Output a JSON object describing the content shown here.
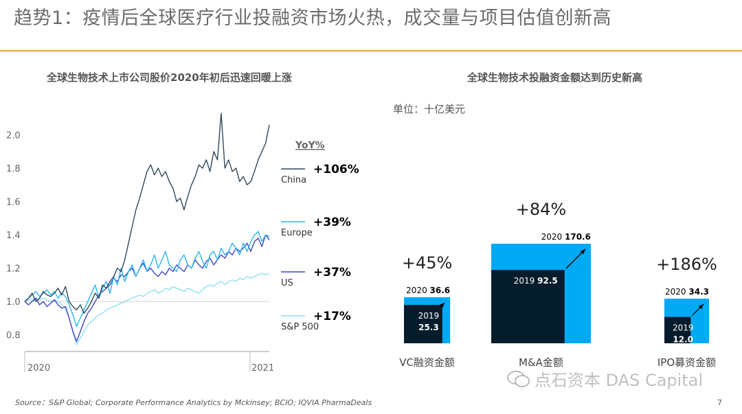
{
  "page": {
    "title": "趋势1：疫情后全球医疗行业投融资市场火热，成交量与项目估值创新高",
    "source": "Source：S&P Global;  Corporate Performance Analytics by Mckinsey; BCIO;  IQVIA PharmaDeals",
    "page_number": "7",
    "watermark": "点石资本 DAS Capital"
  },
  "colors": {
    "china": "#2f4858",
    "europe": "#29b6f0",
    "us": "#3d46c8",
    "sp500": "#8ee0f5",
    "box_2019": "#051c2c",
    "box_2020": "#00a9f4",
    "accent_rule": "#f0a040"
  },
  "chart_data": [
    {
      "type": "line",
      "title": "全球生物技术上市公司股价2020年初后迅速回暖上涨",
      "x_ticks": [
        "2020",
        "2021"
      ],
      "y_ticks": [
        "0.8",
        "1.0",
        "1.2",
        "1.4",
        "1.6",
        "1.8",
        "2.0"
      ],
      "ylim": [
        0.7,
        2.15
      ],
      "grid": "baseline at 1.0",
      "legend_title": "YoY%",
      "legend_position": "right",
      "series": [
        {
          "name": "China",
          "yoy": "+106%",
          "color_key": "china",
          "values": [
            1.0,
            1.02,
            1.05,
            1.0,
            1.02,
            1.06,
            1.04,
            1.03,
            1.05,
            1.08,
            1.04,
            1.09,
            1.0,
            0.97,
            0.95,
            0.98,
            0.93,
            0.96,
            1.0,
            1.05,
            1.02,
            1.1,
            1.08,
            1.12,
            1.15,
            1.2,
            1.18,
            1.25,
            1.35,
            1.45,
            1.55,
            1.62,
            1.7,
            1.78,
            1.82,
            1.76,
            1.8,
            1.75,
            1.78,
            1.72,
            1.68,
            1.6,
            1.62,
            1.55,
            1.63,
            1.7,
            1.75,
            1.82,
            1.8,
            1.85,
            1.78,
            1.9,
            1.85,
            2.13,
            1.8,
            1.85,
            1.78,
            1.8,
            1.72,
            1.75,
            1.7,
            1.72,
            1.78,
            1.85,
            1.9,
            1.95,
            2.06
          ]
        },
        {
          "name": "Europe",
          "yoy": "+39%",
          "color_key": "europe",
          "values": [
            1.0,
            1.02,
            1.04,
            1.06,
            1.03,
            1.05,
            1.07,
            1.04,
            1.06,
            1.02,
            1.05,
            1.03,
            0.98,
            0.92,
            0.85,
            0.9,
            0.95,
            1.0,
            1.05,
            1.1,
            1.02,
            1.08,
            1.12,
            1.05,
            1.15,
            1.1,
            1.2,
            1.12,
            1.18,
            1.22,
            1.15,
            1.2,
            1.25,
            1.18,
            1.22,
            1.28,
            1.2,
            1.25,
            1.3,
            1.22,
            1.2,
            1.18,
            1.25,
            1.28,
            1.22,
            1.2,
            1.26,
            1.3,
            1.24,
            1.2,
            1.28,
            1.3,
            1.25,
            1.32,
            1.28,
            1.3,
            1.35,
            1.32,
            1.28,
            1.35,
            1.3,
            1.36,
            1.4,
            1.42,
            1.36,
            1.4,
            1.39
          ]
        },
        {
          "name": "US",
          "yoy": "+37%",
          "color_key": "us",
          "values": [
            1.0,
            0.98,
            1.0,
            1.02,
            0.98,
            1.0,
            0.97,
            0.99,
            1.01,
            0.98,
            0.96,
            0.97,
            0.9,
            0.82,
            0.76,
            0.82,
            0.88,
            0.93,
            0.96,
            1.0,
            1.04,
            1.06,
            1.08,
            1.1,
            1.14,
            1.12,
            1.16,
            1.15,
            1.18,
            1.2,
            1.15,
            1.2,
            1.23,
            1.18,
            1.2,
            1.17,
            1.15,
            1.18,
            1.16,
            1.2,
            1.18,
            1.22,
            1.2,
            1.18,
            1.22,
            1.2,
            1.25,
            1.22,
            1.2,
            1.24,
            1.26,
            1.22,
            1.25,
            1.28,
            1.26,
            1.3,
            1.28,
            1.32,
            1.3,
            1.32,
            1.35,
            1.3,
            1.36,
            1.38,
            1.33,
            1.4,
            1.37
          ]
        },
        {
          "name": "S&P 500",
          "yoy": "+17%",
          "color_key": "sp500",
          "values": [
            1.0,
            1.01,
            1.01,
            1.02,
            1.01,
            1.02,
            1.01,
            1.0,
            1.01,
            1.0,
            0.98,
            0.96,
            0.9,
            0.82,
            0.74,
            0.78,
            0.82,
            0.86,
            0.88,
            0.9,
            0.92,
            0.93,
            0.95,
            0.96,
            0.97,
            0.98,
            0.99,
            1.0,
            1.01,
            1.02,
            1.03,
            1.04,
            1.03,
            1.05,
            1.06,
            1.07,
            1.05,
            1.06,
            1.08,
            1.07,
            1.09,
            1.08,
            1.07,
            1.06,
            1.08,
            1.07,
            1.06,
            1.05,
            1.07,
            1.09,
            1.1,
            1.09,
            1.11,
            1.12,
            1.1,
            1.12,
            1.13,
            1.12,
            1.14,
            1.13,
            1.15,
            1.14,
            1.15,
            1.16,
            1.17,
            1.16,
            1.17
          ]
        }
      ]
    },
    {
      "type": "bar",
      "title": "全球生物技术投融资金额达到历史新高",
      "unit_label": "单位：十亿美元",
      "categories": [
        "VC融资金额",
        "M&A金额",
        "IPO募资金额"
      ],
      "series": [
        {
          "name": "2019",
          "values": [
            25.3,
            92.5,
            12.0
          ]
        },
        {
          "name": "2020",
          "values": [
            36.6,
            170.6,
            34.3
          ]
        }
      ],
      "growth_labels": [
        "+45%",
        "+84%",
        "+186%"
      ]
    }
  ]
}
